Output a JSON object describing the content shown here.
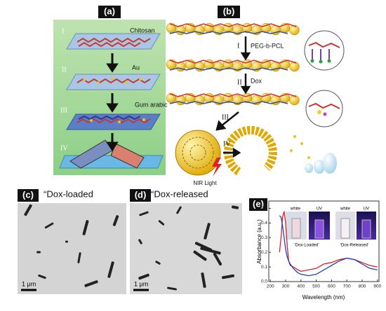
{
  "panel_a": {
    "label": "(a)",
    "steps": [
      "I",
      "II",
      "III",
      "IV"
    ],
    "annotations": [
      "Chitosan",
      "Au",
      "Gum arabic"
    ]
  },
  "panel_b": {
    "label": "(b)",
    "steps": [
      "I",
      "II",
      "III",
      "IV"
    ],
    "annotations": [
      "PEG-b-PCL",
      "Dox",
      "NIR Light"
    ]
  },
  "panel_c": {
    "label": "(c)",
    "caption": "“Dox-loaded",
    "scale_bar": "1 μm"
  },
  "panel_d": {
    "label": "(d)",
    "caption": "“Dox-released",
    "scale_bar": "1 μm"
  },
  "chart_data": {
    "type": "line",
    "panel_label": "(e)",
    "x_label": "Wavelength (nm)",
    "y_label": "Absorbance (a.u.)",
    "inset_labels": [
      "white",
      "UV",
      "white",
      "UV"
    ],
    "annotations": [
      "‘Dox-Loaded’",
      "‘Dox-Released’"
    ],
    "x": [
      260,
      270,
      280,
      290,
      300,
      310,
      320,
      330,
      350,
      380,
      400,
      450,
      500,
      550,
      600,
      650,
      700,
      750,
      800,
      850,
      900
    ],
    "series": [
      {
        "color": "#e02020",
        "values": [
          0.2,
          0.3,
          0.44,
          0.48,
          0.4,
          0.25,
          0.14,
          0.11,
          0.1,
          0.08,
          0.07,
          0.08,
          0.09,
          0.12,
          0.13,
          0.15,
          0.16,
          0.15,
          0.13,
          0.11,
          0.1
        ]
      },
      {
        "color": "#2040c0",
        "values": [
          0.45,
          0.44,
          0.38,
          0.3,
          0.22,
          0.17,
          0.14,
          0.12,
          0.09,
          0.06,
          0.05,
          0.04,
          0.05,
          0.08,
          0.11,
          0.14,
          0.16,
          0.15,
          0.12,
          0.09,
          0.08
        ]
      }
    ],
    "xlim": [
      190,
      910
    ],
    "ylim": [
      0,
      0.55
    ],
    "xticks": [
      200,
      300,
      400,
      500,
      600,
      700,
      800,
      900
    ],
    "yticks": [
      {
        "value": 0,
        "label": "0.0"
      },
      0.1,
      0.2,
      0.3,
      0.4,
      0.5
    ]
  }
}
